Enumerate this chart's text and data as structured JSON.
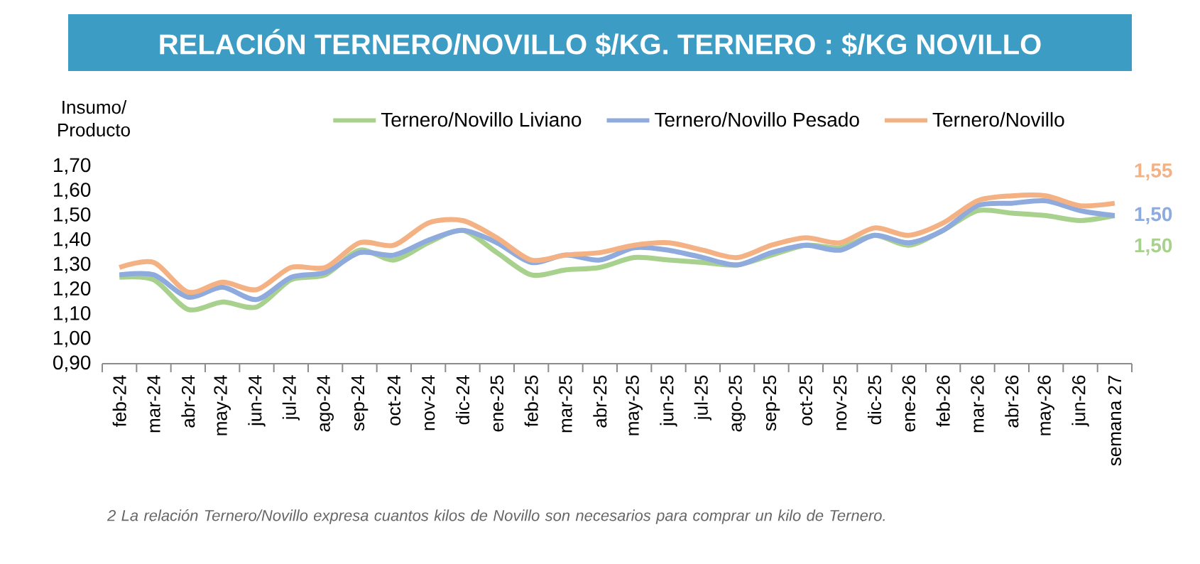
{
  "chart_data": {
    "type": "line",
    "title": "RELACIÓN TERNERO/NOVILLO $/KG. TERNERO : $/KG NOVILLO",
    "ylabel": "Insumo/ Producto",
    "categories": [
      "feb-24",
      "mar-24",
      "abr-24",
      "may-24",
      "jun-24",
      "jul-24",
      "ago-24",
      "sep-24",
      "oct-24",
      "nov-24",
      "dic-24",
      "ene-25",
      "feb-25",
      "mar-25",
      "abr-25",
      "may-25",
      "jun-25",
      "jul-25",
      "ago-25",
      "sep-25",
      "oct-25",
      "nov-25",
      "dic-25",
      "ene-26",
      "feb-26",
      "mar-26",
      "abr-26",
      "may-26",
      "jun-26",
      "semana 27"
    ],
    "series": [
      {
        "name": "Ternero/Novillo Liviano",
        "color": "#a9d18e",
        "values": [
          1.25,
          1.24,
          1.12,
          1.15,
          1.13,
          1.24,
          1.26,
          1.36,
          1.32,
          1.39,
          1.44,
          1.35,
          1.26,
          1.28,
          1.29,
          1.33,
          1.32,
          1.31,
          1.3,
          1.34,
          1.38,
          1.37,
          1.42,
          1.38,
          1.44,
          1.52,
          1.51,
          1.5,
          1.48,
          1.5
        ],
        "value_labels": [
          null,
          null,
          null,
          null,
          null,
          null,
          null,
          null,
          null,
          null,
          null,
          null,
          null,
          null,
          null,
          null,
          null,
          null,
          null,
          null,
          null,
          null,
          null,
          null,
          null,
          null,
          null,
          null,
          null,
          "1,50"
        ]
      },
      {
        "name": "Ternero/Novillo Pesado",
        "color": "#8faadc",
        "values": [
          1.26,
          1.26,
          1.17,
          1.21,
          1.16,
          1.25,
          1.27,
          1.35,
          1.34,
          1.4,
          1.44,
          1.39,
          1.31,
          1.34,
          1.32,
          1.37,
          1.36,
          1.33,
          1.3,
          1.35,
          1.38,
          1.36,
          1.42,
          1.39,
          1.44,
          1.54,
          1.55,
          1.56,
          1.52,
          1.5
        ],
        "value_labels": [
          null,
          null,
          null,
          null,
          null,
          null,
          null,
          null,
          null,
          null,
          null,
          null,
          null,
          null,
          null,
          null,
          null,
          null,
          null,
          null,
          null,
          null,
          null,
          null,
          null,
          null,
          null,
          null,
          null,
          "1,50"
        ]
      },
      {
        "name": "Ternero/Novillo",
        "color": "#f4b183",
        "values": [
          1.29,
          1.31,
          1.19,
          1.23,
          1.2,
          1.29,
          1.29,
          1.39,
          1.38,
          1.47,
          1.48,
          1.41,
          1.32,
          1.34,
          1.35,
          1.38,
          1.39,
          1.36,
          1.33,
          1.38,
          1.41,
          1.39,
          1.45,
          1.42,
          1.47,
          1.56,
          1.58,
          1.58,
          1.54,
          1.55
        ],
        "value_labels": [
          null,
          null,
          null,
          null,
          null,
          null,
          null,
          null,
          null,
          null,
          null,
          null,
          null,
          null,
          null,
          null,
          null,
          null,
          null,
          null,
          null,
          null,
          null,
          null,
          null,
          null,
          null,
          null,
          null,
          "1,55"
        ]
      }
    ],
    "ylim": [
      0.9,
      1.7
    ],
    "yticks": [
      {
        "value": 0.9,
        "label": "0,90"
      },
      {
        "value": 1.0,
        "label": "1,00"
      },
      {
        "value": 1.1,
        "label": "1,10"
      },
      {
        "value": 1.2,
        "label": "1,20"
      },
      {
        "value": 1.3,
        "label": "1,30"
      },
      {
        "value": 1.4,
        "label": "1,40"
      },
      {
        "value": 1.5,
        "label": "1,50"
      },
      {
        "value": 1.6,
        "label": "1,60"
      },
      {
        "value": 1.7,
        "label": "1,70"
      }
    ],
    "legend": "top",
    "grid": false,
    "marker": "none",
    "line_style": "solid",
    "annotations": [
      "2 La relación Ternero/Novillo expresa cuantos kilos de Novillo son necesarios para comprar un kilo de Ternero."
    ]
  }
}
